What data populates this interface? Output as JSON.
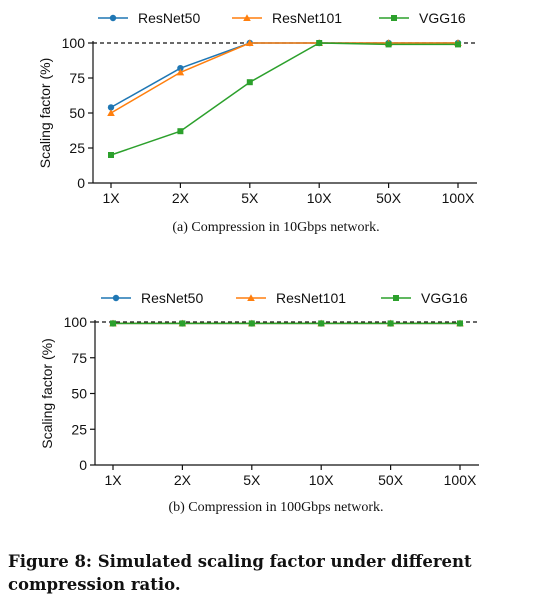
{
  "chart_data": [
    {
      "type": "line",
      "categories": [
        "1X",
        "2X",
        "5X",
        "10X",
        "50X",
        "100X"
      ],
      "ylabel": "Scaling factor (%)",
      "ylim": [
        0,
        100
      ],
      "yticks": [
        "0",
        "25",
        "50",
        "75",
        "100"
      ],
      "reference_line": 100,
      "legend": "top",
      "series": [
        {
          "name": "ResNet50",
          "color": "#1f77b4",
          "marker": "circle",
          "values": [
            54,
            82,
            100,
            100,
            100,
            100
          ]
        },
        {
          "name": "ResNet101",
          "color": "#ff7f0e",
          "marker": "triangle",
          "values": [
            50,
            79,
            100,
            100,
            100,
            100
          ]
        },
        {
          "name": "VGG16",
          "color": "#2ca02c",
          "marker": "square",
          "values": [
            20,
            37,
            72,
            100,
            99,
            99
          ]
        }
      ],
      "caption": "(a) Compression in 10Gbps network."
    },
    {
      "type": "line",
      "categories": [
        "1X",
        "2X",
        "5X",
        "10X",
        "50X",
        "100X"
      ],
      "ylabel": "Scaling factor (%)",
      "ylim": [
        0,
        100
      ],
      "yticks": [
        "0",
        "25",
        "50",
        "75",
        "100"
      ],
      "reference_line": 100,
      "legend": "top",
      "series": [
        {
          "name": "ResNet50",
          "color": "#1f77b4",
          "marker": "circle",
          "values": [
            99,
            99,
            99,
            99,
            99,
            99
          ]
        },
        {
          "name": "ResNet101",
          "color": "#ff7f0e",
          "marker": "triangle",
          "values": [
            99,
            99,
            99,
            99,
            99,
            99
          ]
        },
        {
          "name": "VGG16",
          "color": "#2ca02c",
          "marker": "square",
          "values": [
            99,
            99,
            99,
            99,
            99,
            99
          ]
        }
      ],
      "caption": "(b) Compression in 100Gbps network."
    }
  ],
  "figure_caption": "Figure 8: Simulated scaling factor under different compression ratio."
}
